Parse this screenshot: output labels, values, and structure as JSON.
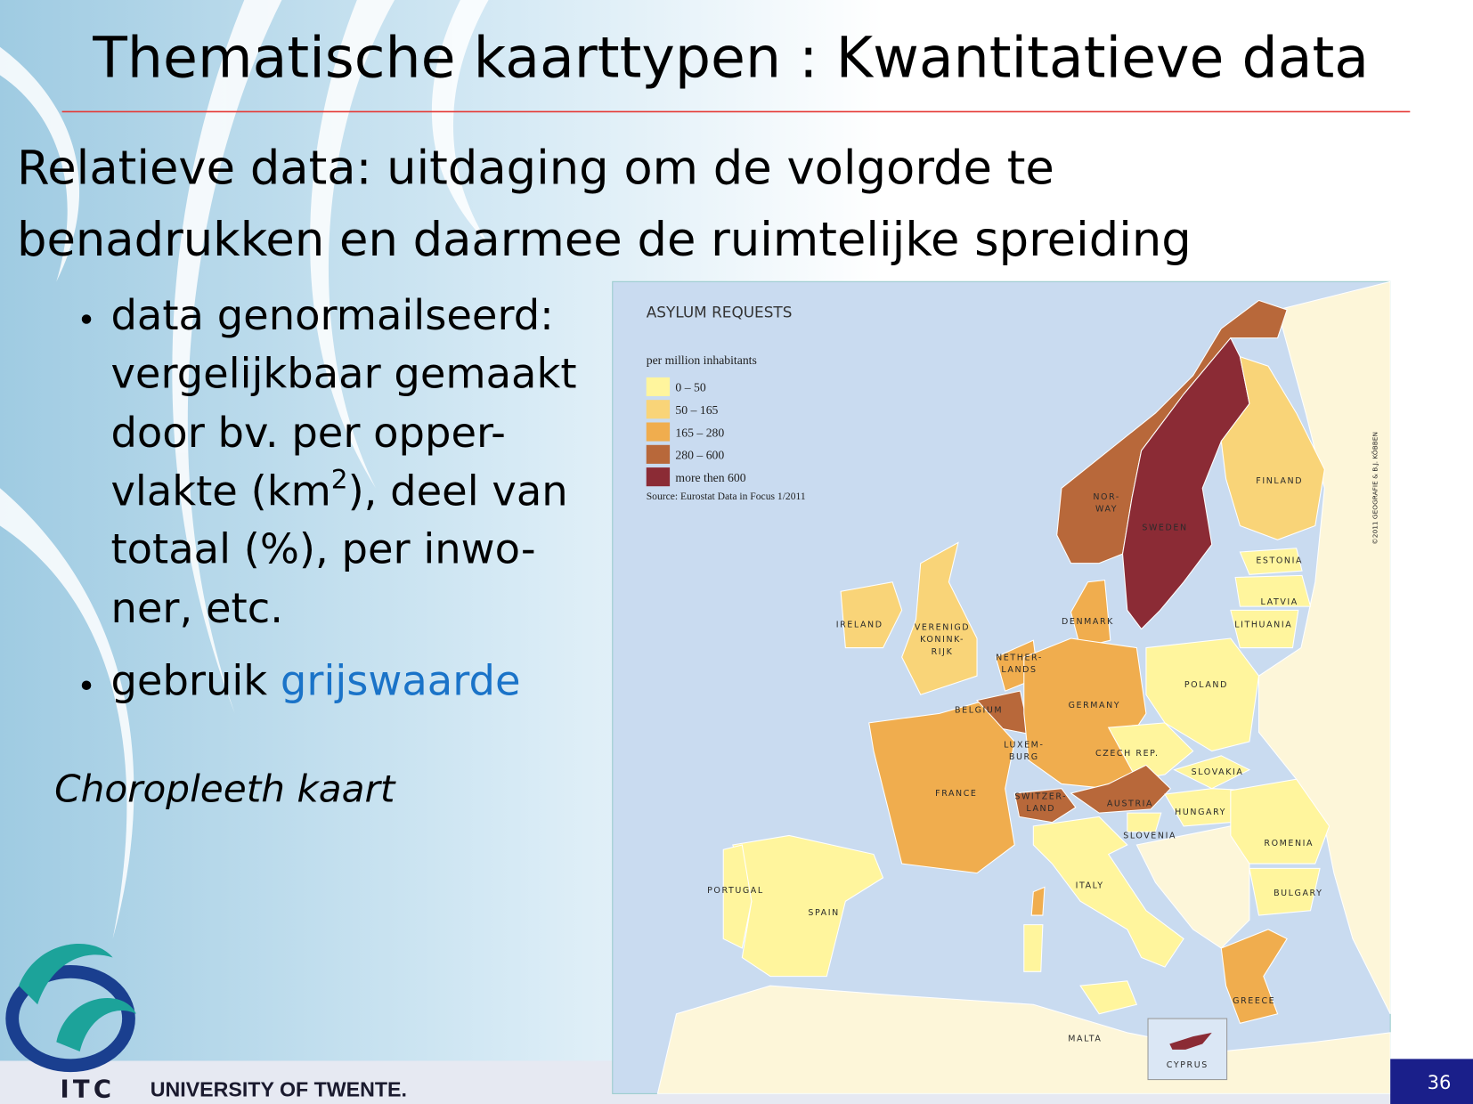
{
  "title": "Thematische kaarttypen : Kwantitatieve data",
  "subtitle": {
    "lines": [
      "Relatieve data: uitdaging om de volgorde te",
      "benadrukken en daarmee de ruimtelijke spreiding"
    ]
  },
  "bullets": [
    {
      "lines": [
        [
          "data genormailseerd:"
        ],
        [
          "vergelijkbaar gemaakt"
        ],
        [
          "door bv. per opper-"
        ],
        [
          "vlakte (km",
          "2",
          "), deel van"
        ],
        [
          "totaal (%), per inwo-"
        ],
        [
          "ner, etc."
        ]
      ]
    },
    {
      "text": "gebruik ",
      "highlight": "grijswaarde"
    }
  ],
  "caption": "Choropleeth kaart",
  "map": {
    "title": "ASYLUM REQUESTS",
    "unit": "per million inhabitants",
    "legend": [
      "0 – 50",
      "50 – 165",
      "165 – 280",
      "280 – 600",
      "more then 600"
    ],
    "source": "Source: Eurostat Data in Focus 1/2011",
    "credit": "©2011 GEOGRAFIE & B.J. KÖBBEN",
    "labels": [
      [
        "IRELAND"
      ],
      [
        "VERENIGD",
        "KONINK-",
        "RIJK"
      ],
      [
        "NETHER-",
        "LANDS"
      ],
      [
        "BELGIUM"
      ],
      [
        "GERMANY"
      ],
      [
        "DENMARK"
      ],
      [
        "NOR-",
        "WAY"
      ],
      [
        "SWEDEN"
      ],
      [
        "FINLAND"
      ],
      [
        "ESTONIA"
      ],
      [
        "LATVIA"
      ],
      [
        "LITHUANIA"
      ],
      [
        "POLAND"
      ],
      [
        "CZECH REP."
      ],
      [
        "SLOVAKIA"
      ],
      [
        "HUNGARY"
      ],
      [
        "AUSTRIA"
      ],
      [
        "SWITZER-",
        "LAND"
      ],
      [
        "LUXEM-",
        "BURG"
      ],
      [
        "FRANCE"
      ],
      [
        "SLOVENIA"
      ],
      [
        "ROMENIA"
      ],
      [
        "BULGARY"
      ],
      [
        "ITALY"
      ],
      [
        "PORTUGAL"
      ],
      [
        "SPAIN"
      ],
      [
        "GREECE"
      ],
      [
        "MALTA"
      ],
      [
        "CYPRUS"
      ]
    ]
  },
  "footer": {
    "logo": "ITC",
    "university": "UNIVERSITY OF TWENTE.",
    "page": "36"
  }
}
